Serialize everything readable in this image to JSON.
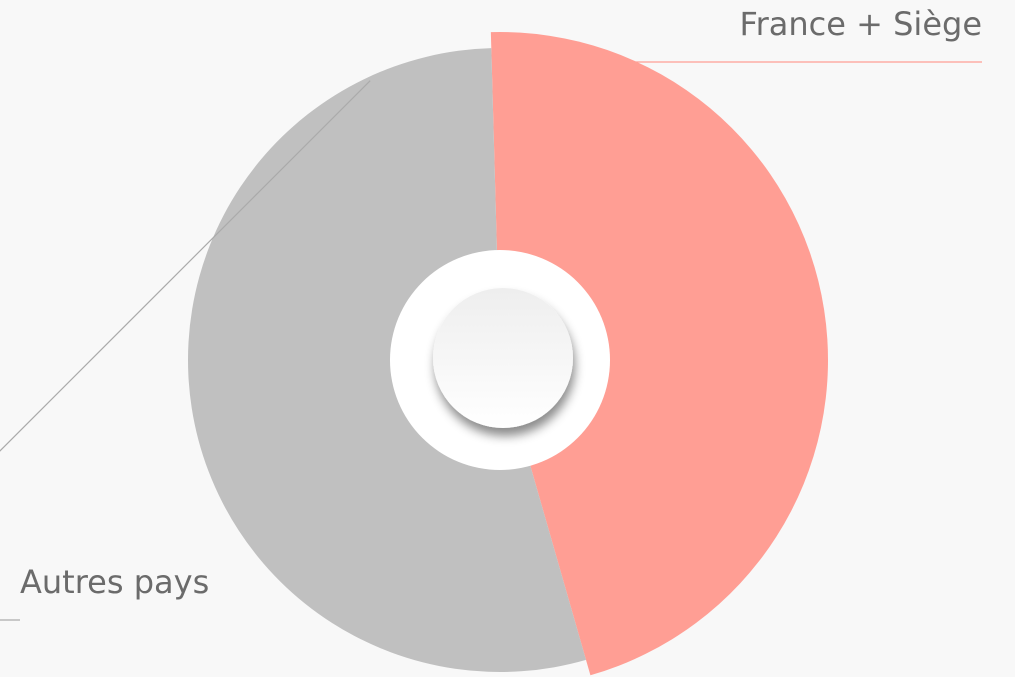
{
  "chart_data": {
    "type": "pie",
    "donut": true,
    "categories": [
      "France + Siège",
      "Autres pays"
    ],
    "values": [
      46,
      54
    ],
    "colors": [
      "#ff9e94",
      "#c0c0c0"
    ]
  }
}
